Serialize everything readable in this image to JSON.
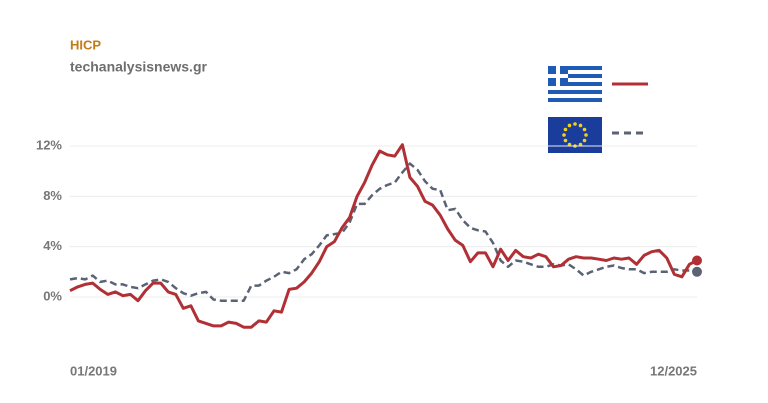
{
  "chart_data": {
    "type": "line",
    "title": "HICP",
    "subtitle": "techanalysisnews.gr",
    "categories": [
      "01/2019",
      null,
      null,
      null,
      null,
      null,
      null,
      null,
      null,
      null,
      null,
      null,
      null,
      null,
      null,
      null,
      null,
      null,
      null,
      null,
      null,
      null,
      null,
      null,
      null,
      null,
      null,
      null,
      null,
      null,
      null,
      null,
      null,
      null,
      null,
      null,
      null,
      null,
      null,
      null,
      null,
      null,
      null,
      null,
      null,
      null,
      null,
      null,
      null,
      null,
      null,
      null,
      null,
      null,
      null,
      null,
      null,
      null,
      null,
      null,
      null,
      null,
      null,
      null,
      null,
      null,
      null,
      null,
      null,
      null,
      null,
      null,
      null,
      null,
      null,
      null,
      null,
      null,
      null,
      null,
      null,
      null,
      null,
      "12/2025"
    ],
    "series": [
      {
        "color": "#b03035",
        "line_style": "solid",
        "values": [
          0.5,
          0.8,
          1.0,
          1.1,
          0.6,
          0.2,
          0.4,
          0.1,
          0.2,
          -0.3,
          0.5,
          1.1,
          1.1,
          0.4,
          0.2,
          -0.9,
          -0.7,
          -1.9,
          -2.1,
          -2.3,
          -2.3,
          -2.0,
          -2.1,
          -2.4,
          -2.4,
          -1.9,
          -2.0,
          -1.1,
          -1.2,
          0.6,
          0.7,
          1.2,
          1.9,
          2.8,
          4.0,
          4.4,
          5.5,
          6.3,
          8.0,
          9.1,
          10.5,
          11.6,
          11.3,
          11.2,
          12.1,
          9.5,
          8.8,
          7.6,
          7.3,
          6.5,
          5.4,
          4.5,
          4.1,
          2.8,
          3.5,
          3.5,
          2.4,
          3.8,
          2.9,
          3.7,
          3.2,
          3.1,
          3.4,
          3.2,
          2.4,
          2.5,
          3.0,
          3.2,
          3.1,
          3.1,
          3.0,
          2.9,
          3.1,
          3.0,
          3.1,
          2.6,
          3.3,
          3.6,
          3.7,
          3.1,
          1.8,
          1.6,
          2.6,
          2.9
        ]
      },
      {
        "color": "#5a6274",
        "line_style": "dashed",
        "values": [
          1.4,
          1.5,
          1.4,
          1.7,
          1.2,
          1.3,
          1.0,
          1.0,
          0.8,
          0.7,
          1.0,
          1.3,
          1.4,
          1.2,
          0.7,
          0.3,
          0.1,
          0.3,
          0.4,
          -0.2,
          -0.3,
          -0.3,
          -0.3,
          -0.3,
          0.9,
          0.9,
          1.3,
          1.6,
          2.0,
          1.9,
          2.2,
          3.0,
          3.4,
          4.1,
          4.9,
          5.0,
          5.1,
          5.9,
          7.4,
          7.4,
          8.1,
          8.6,
          8.9,
          9.1,
          9.9,
          10.6,
          10.1,
          9.2,
          8.6,
          8.5,
          6.9,
          7.0,
          6.1,
          5.5,
          5.3,
          5.2,
          4.3,
          2.9,
          2.4,
          2.9,
          2.8,
          2.6,
          2.4,
          2.4,
          2.6,
          2.5,
          2.6,
          2.2,
          1.7,
          2.0,
          2.2,
          2.4,
          2.5,
          2.3,
          2.2,
          2.2,
          1.9,
          2.0,
          2.0,
          2.0,
          2.2,
          2.1,
          2.1,
          2.0
        ]
      }
    ],
    "ylim": [
      -3.5,
      12.5
    ],
    "yticks": [
      {
        "value": 0,
        "label": "0%"
      },
      {
        "value": 4,
        "label": "4%"
      },
      {
        "value": 8,
        "label": "8%"
      },
      {
        "value": 12,
        "label": "12%"
      }
    ],
    "grid": true
  }
}
